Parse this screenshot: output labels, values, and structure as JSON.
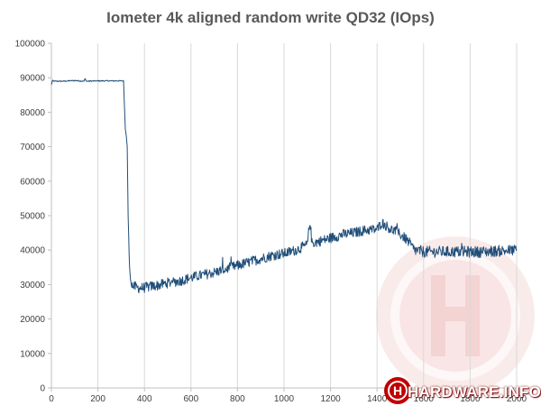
{
  "chart_data": {
    "type": "line",
    "title": "Iometer 4k aligned random write QD32 (IOps)",
    "xlabel": "",
    "ylabel": "",
    "xlim": [
      0,
      2000
    ],
    "ylim": [
      0,
      100000
    ],
    "x_ticks": [
      0,
      200,
      400,
      600,
      800,
      1000,
      1200,
      1400,
      1600,
      1800,
      2000
    ],
    "y_ticks": [
      0,
      10000,
      20000,
      30000,
      40000,
      50000,
      60000,
      70000,
      80000,
      90000,
      100000
    ],
    "grid": "vertical",
    "series": [
      {
        "name": "",
        "color": "#1f4e79",
        "x": [
          0,
          5,
          10,
          50,
          100,
          140,
          145,
          150,
          200,
          250,
          300,
          310,
          318,
          322,
          326,
          330,
          335,
          340,
          350,
          375,
          400,
          430,
          460,
          500,
          550,
          600,
          650,
          700,
          750,
          800,
          850,
          900,
          950,
          1000,
          1050,
          1100,
          1112,
          1120,
          1150,
          1200,
          1250,
          1300,
          1350,
          1400,
          1420,
          1440,
          1460,
          1480,
          1500,
          1520,
          1540,
          1560,
          1600,
          1650,
          1700,
          1750,
          1800,
          1850,
          1900,
          1950,
          2000
        ],
        "y": [
          88000,
          89200,
          89000,
          89000,
          89200,
          89000,
          89800,
          89000,
          89100,
          89100,
          89100,
          89100,
          75000,
          73000,
          70000,
          50000,
          36000,
          31500,
          29500,
          29000,
          29100,
          29500,
          29800,
          30500,
          31000,
          32000,
          32800,
          33500,
          34500,
          35500,
          36500,
          37500,
          38500,
          39000,
          40000,
          41500,
          48500,
          42000,
          42500,
          43500,
          44500,
          45000,
          45800,
          46000,
          48000,
          47000,
          46000,
          45500,
          44500,
          43500,
          42000,
          40000,
          39500,
          39500,
          39500,
          39500,
          39500,
          39500,
          39700,
          39800,
          40000
        ]
      }
    ],
    "noise": 1500
  },
  "watermark": {
    "letter": "H",
    "brand": "HARDWARE",
    "suffix": ".INFO",
    "color": "#c00000"
  }
}
